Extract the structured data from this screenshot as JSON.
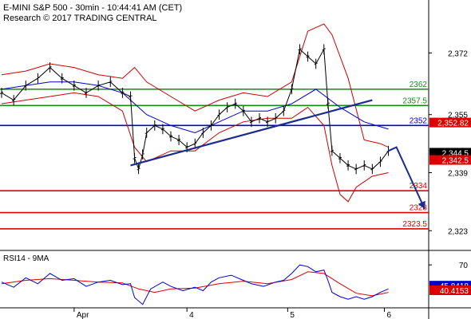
{
  "chart_data": {
    "type": "candlestick",
    "header": {
      "line1": "E-MINI S&P 500 - 30min - 10:44:41 AM (CET)",
      "line2": "Research © 2017 TRADING CENTRAL"
    },
    "y_axis": {
      "range": [
        2318,
        2380
      ],
      "ticks": [
        "2,372",
        "2,355",
        "2,339",
        "2,323"
      ],
      "tick_values": [
        2372,
        2355,
        2339,
        2323
      ]
    },
    "x_axis": {
      "labels": [
        "Apr",
        "4",
        "5",
        "6"
      ]
    },
    "levels": [
      {
        "name": "resistance-2362",
        "value": 2362,
        "label": "2362",
        "color": "#1a8a1a"
      },
      {
        "name": "resistance-2357-5",
        "value": 2357.5,
        "label": "2357.5",
        "color": "#1a8a1a"
      },
      {
        "name": "pivot-2352",
        "value": 2352,
        "label": "2352",
        "color": "#0000cc"
      },
      {
        "name": "support-2334",
        "value": 2334,
        "label": "2334",
        "color": "#dd0000"
      },
      {
        "name": "support-2328",
        "value": 2328,
        "label": "2328",
        "color": "#dd0000"
      },
      {
        "name": "support-2323-5",
        "value": 2323.5,
        "label": "2323.5",
        "color": "#dd0000"
      }
    ],
    "price_badges": [
      {
        "name": "badge-upper",
        "value": 2352.82,
        "label": "2,352.82",
        "bg": "#dd0000"
      },
      {
        "name": "badge-last",
        "value": 2344.5,
        "label": "2,344.5",
        "bg": "#000000"
      },
      {
        "name": "badge-lower",
        "value": 2342.5,
        "label": "2,342.5",
        "bg": "#dd0000"
      }
    ],
    "price_path_points": [
      [
        0,
        2361
      ],
      [
        3,
        2359
      ],
      [
        6,
        2363
      ],
      [
        9,
        2365
      ],
      [
        12,
        2368
      ],
      [
        15,
        2365
      ],
      [
        18,
        2363
      ],
      [
        21,
        2361
      ],
      [
        24,
        2363
      ],
      [
        27,
        2364
      ],
      [
        30,
        2361
      ],
      [
        32,
        2360
      ],
      [
        33,
        2343
      ],
      [
        34,
        2340
      ],
      [
        35,
        2344
      ],
      [
        36,
        2350
      ],
      [
        38,
        2352
      ],
      [
        40,
        2351
      ],
      [
        42,
        2349
      ],
      [
        44,
        2348
      ],
      [
        46,
        2346
      ],
      [
        48,
        2347
      ],
      [
        50,
        2350
      ],
      [
        52,
        2352
      ],
      [
        54,
        2355
      ],
      [
        56,
        2357
      ],
      [
        58,
        2358
      ],
      [
        60,
        2356
      ],
      [
        62,
        2353
      ],
      [
        64,
        2354
      ],
      [
        66,
        2353
      ],
      [
        68,
        2354
      ],
      [
        70,
        2356
      ],
      [
        72,
        2362
      ],
      [
        74,
        2373
      ],
      [
        76,
        2371
      ],
      [
        78,
        2369
      ],
      [
        80,
        2373
      ],
      [
        81,
        2358
      ],
      [
        82,
        2345
      ],
      [
        84,
        2343
      ],
      [
        86,
        2341
      ],
      [
        88,
        2340
      ],
      [
        90,
        2341
      ],
      [
        92,
        2340
      ],
      [
        94,
        2342
      ],
      [
        96,
        2345
      ]
    ],
    "bands": {
      "upper": [
        [
          0,
          2366
        ],
        [
          6,
          2367
        ],
        [
          12,
          2369
        ],
        [
          18,
          2368
        ],
        [
          24,
          2366
        ],
        [
          30,
          2365
        ],
        [
          33,
          2368
        ],
        [
          36,
          2364
        ],
        [
          42,
          2360
        ],
        [
          48,
          2356
        ],
        [
          54,
          2359
        ],
        [
          60,
          2361
        ],
        [
          66,
          2360
        ],
        [
          72,
          2364
        ],
        [
          76,
          2378
        ],
        [
          80,
          2380
        ],
        [
          82,
          2377
        ],
        [
          86,
          2365
        ],
        [
          90,
          2348
        ],
        [
          94,
          2347
        ],
        [
          96,
          2346
        ]
      ],
      "lower": [
        [
          0,
          2358
        ],
        [
          6,
          2359
        ],
        [
          12,
          2360
        ],
        [
          18,
          2361
        ],
        [
          24,
          2360
        ],
        [
          30,
          2356
        ],
        [
          33,
          2346
        ],
        [
          36,
          2342
        ],
        [
          42,
          2345
        ],
        [
          48,
          2345
        ],
        [
          54,
          2350
        ],
        [
          60,
          2353
        ],
        [
          66,
          2354
        ],
        [
          72,
          2354
        ],
        [
          76,
          2357
        ],
        [
          80,
          2352
        ],
        [
          82,
          2341
        ],
        [
          84,
          2333
        ],
        [
          86,
          2331
        ],
        [
          88,
          2335
        ],
        [
          92,
          2338
        ],
        [
          96,
          2339
        ]
      ],
      "mid": [
        [
          0,
          2362
        ],
        [
          6,
          2363
        ],
        [
          12,
          2364
        ],
        [
          18,
          2364
        ],
        [
          24,
          2363
        ],
        [
          30,
          2361
        ],
        [
          36,
          2355
        ],
        [
          42,
          2352
        ],
        [
          48,
          2350
        ],
        [
          54,
          2353
        ],
        [
          60,
          2356
        ],
        [
          66,
          2356
        ],
        [
          72,
          2358
        ],
        [
          78,
          2362
        ],
        [
          84,
          2357
        ],
        [
          90,
          2353
        ],
        [
          96,
          2351
        ]
      ]
    },
    "trendline": {
      "from": [
        32,
        2341
      ],
      "to": [
        92,
        2359
      ]
    },
    "forecast_arrow": {
      "points": [
        [
          96,
          2345
        ],
        [
          98,
          2346
        ],
        [
          105,
          2329
        ]
      ]
    },
    "rsi": {
      "title": "RSI14 - 9MA",
      "ticks": [
        "70"
      ],
      "tick_values": [
        70
      ],
      "range": [
        20,
        85
      ],
      "badges": [
        {
          "name": "rsi-value-badge",
          "value": 45.8418,
          "label": "45.8418",
          "bg": "#0000cc"
        },
        {
          "name": "rsi-ma-badge",
          "value": 40.4153,
          "label": "40.4153",
          "bg": "#dd0000"
        }
      ],
      "rsi_line": [
        [
          0,
          50
        ],
        [
          3,
          44
        ],
        [
          6,
          55
        ],
        [
          9,
          48
        ],
        [
          12,
          60
        ],
        [
          15,
          52
        ],
        [
          18,
          54
        ],
        [
          21,
          45
        ],
        [
          24,
          50
        ],
        [
          27,
          52
        ],
        [
          30,
          47
        ],
        [
          32,
          48
        ],
        [
          33,
          32
        ],
        [
          35,
          24
        ],
        [
          37,
          42
        ],
        [
          40,
          50
        ],
        [
          42,
          45
        ],
        [
          45,
          40
        ],
        [
          48,
          44
        ],
        [
          50,
          40
        ],
        [
          52,
          50
        ],
        [
          54,
          55
        ],
        [
          57,
          58
        ],
        [
          60,
          52
        ],
        [
          62,
          48
        ],
        [
          65,
          45
        ],
        [
          68,
          50
        ],
        [
          70,
          52
        ],
        [
          72,
          60
        ],
        [
          74,
          70
        ],
        [
          76,
          68
        ],
        [
          78,
          62
        ],
        [
          80,
          64
        ],
        [
          81,
          52
        ],
        [
          82,
          38
        ],
        [
          84,
          33
        ],
        [
          86,
          30
        ],
        [
          88,
          33
        ],
        [
          90,
          30
        ],
        [
          92,
          33
        ],
        [
          94,
          38
        ],
        [
          96,
          42
        ]
      ],
      "ma_line": [
        [
          0,
          48
        ],
        [
          6,
          52
        ],
        [
          12,
          54
        ],
        [
          18,
          52
        ],
        [
          24,
          50
        ],
        [
          30,
          49
        ],
        [
          34,
          42
        ],
        [
          38,
          38
        ],
        [
          42,
          42
        ],
        [
          48,
          43
        ],
        [
          54,
          48
        ],
        [
          60,
          51
        ],
        [
          66,
          48
        ],
        [
          72,
          53
        ],
        [
          76,
          62
        ],
        [
          80,
          60
        ],
        [
          84,
          48
        ],
        [
          88,
          37
        ],
        [
          92,
          34
        ],
        [
          96,
          38
        ]
      ]
    },
    "colors": {
      "price": "#000000",
      "band": "#cc0000",
      "mid": "#0000cc",
      "trendline": "#1c2b8f",
      "arrow": "#1c2b8f",
      "rsi": "#0000cc",
      "rsi_ma": "#dd0000"
    },
    "grid": false
  }
}
